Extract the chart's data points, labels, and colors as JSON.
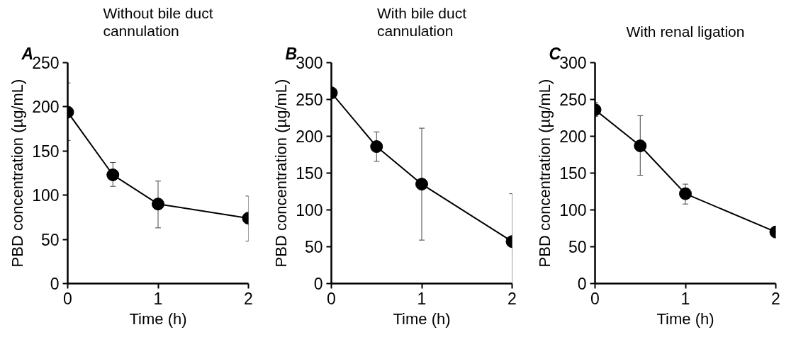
{
  "chart_data": [
    {
      "type": "line",
      "title": "Without bile duct\ncannulation",
      "annotations": [
        "A"
      ],
      "xlabel": "Time (h)",
      "ylabel": "PBD concentration (µg/mL)",
      "x": [
        0,
        0.5,
        1,
        2
      ],
      "xlim": [
        0,
        2
      ],
      "xticks": [
        0,
        1,
        2
      ],
      "ylim": [
        0,
        250
      ],
      "yticks": [
        0,
        50,
        100,
        150,
        200,
        250
      ],
      "marker": "circle",
      "line_style": "solid",
      "grid": false,
      "series": [
        {
          "color": "#000000",
          "values": [
            194,
            123,
            90,
            74
          ],
          "errors": [
            [
              162,
              227
            ],
            [
              110,
              137
            ],
            [
              63,
              116
            ],
            [
              48,
              99
            ]
          ]
        }
      ]
    },
    {
      "type": "line",
      "title": "With bile duct\ncannulation",
      "annotations": [
        "B"
      ],
      "xlabel": "Time (h)",
      "ylabel": "PBD concentration (µg/mL)",
      "x": [
        0,
        0.5,
        1,
        2
      ],
      "xlim": [
        0,
        2
      ],
      "xticks": [
        0,
        1,
        2
      ],
      "ylim": [
        0,
        300
      ],
      "yticks": [
        0,
        50,
        100,
        150,
        200,
        250,
        300
      ],
      "marker": "circle",
      "line_style": "solid",
      "grid": false,
      "series": [
        {
          "color": "#000000",
          "values": [
            259,
            186,
            135,
            57
          ],
          "errors": [
            null,
            [
              166,
              206
            ],
            [
              59,
              211
            ],
            [
              0,
              122
            ]
          ]
        }
      ]
    },
    {
      "type": "line",
      "title": "With renal ligation",
      "annotations": [
        "C"
      ],
      "xlabel": "Time (h)",
      "ylabel": "PBD concentration (µg/mL)",
      "x": [
        0,
        0.5,
        1,
        2
      ],
      "xlim": [
        0,
        2
      ],
      "xticks": [
        0,
        1,
        2
      ],
      "ylim": [
        0,
        300
      ],
      "yticks": [
        0,
        50,
        100,
        150,
        200,
        250,
        300
      ],
      "marker": "circle",
      "line_style": "solid",
      "grid": false,
      "series": [
        {
          "color": "#000000",
          "values": [
            236,
            187,
            122,
            70
          ],
          "errors": [
            [
              227,
              246
            ],
            [
              147,
              228
            ],
            [
              108,
              135
            ],
            null
          ]
        }
      ]
    }
  ]
}
